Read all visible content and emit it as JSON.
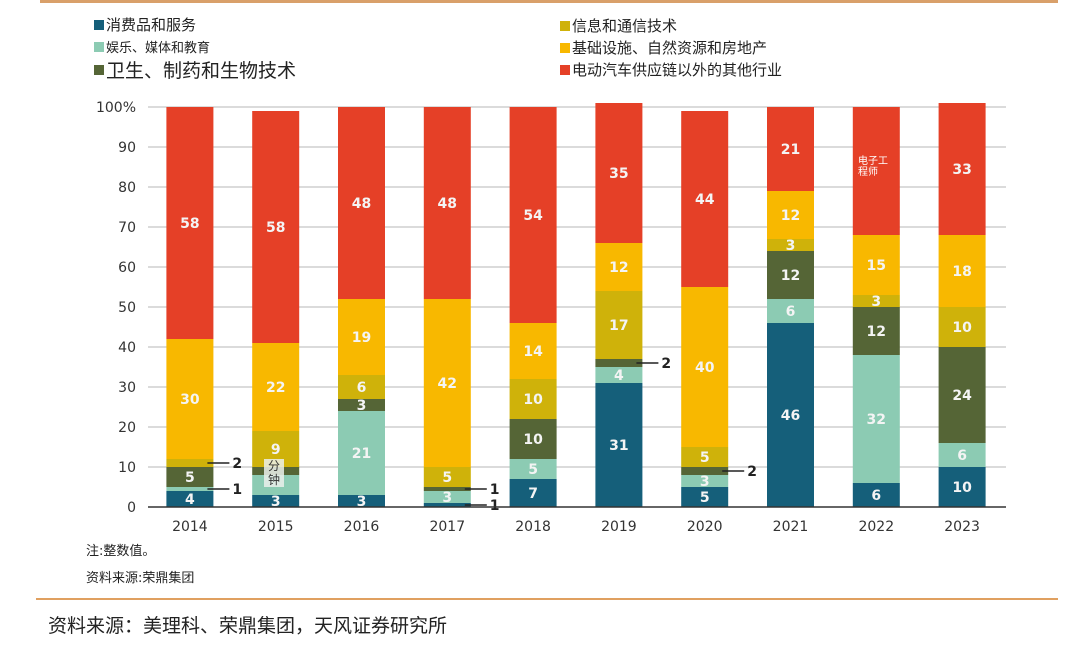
{
  "legend": [
    {
      "label": "消费品和服务",
      "color": "#155f7a"
    },
    {
      "label": "娱乐、媒体和教育",
      "color": "#8ccbb3"
    },
    {
      "label": "卫生、制药和生物技术",
      "color": "#556536"
    },
    {
      "label": "信息和通信技术",
      "color": "#cfb20a"
    },
    {
      "label": "基础设施、自然资源和房地产",
      "color": "#f8b800"
    },
    {
      "label": "电动汽车供应链以外的其他行业",
      "color": "#e54027"
    }
  ],
  "chart_data": {
    "type": "bar",
    "stacked": true,
    "title": "",
    "xlabel": "",
    "ylabel": "",
    "ylim": [
      0,
      100
    ],
    "yticks": [
      "0",
      "10",
      "20",
      "30",
      "40",
      "50",
      "60",
      "70",
      "80",
      "90",
      "100%"
    ],
    "grid": true,
    "legend_position": "top",
    "categories": [
      "2014",
      "2015",
      "2016",
      "2017",
      "2018",
      "2019",
      "2020",
      "2021",
      "2022",
      "2023"
    ],
    "series": [
      {
        "name": "消费品和服务",
        "color": "#155f7a",
        "values": [
          4,
          3,
          3,
          1,
          7,
          31,
          5,
          46,
          6,
          10
        ]
      },
      {
        "name": "娱乐、媒体和教育",
        "color": "#8ccbb3",
        "values": [
          1,
          5,
          21,
          3,
          5,
          4,
          3,
          6,
          32,
          6
        ]
      },
      {
        "name": "卫生、制药和生物技术",
        "color": "#556536",
        "values": [
          5,
          2,
          3,
          1,
          10,
          2,
          2,
          12,
          12,
          24
        ]
      },
      {
        "name": "信息和通信技术",
        "color": "#cfb20a",
        "values": [
          2,
          9,
          6,
          5,
          10,
          17,
          5,
          3,
          3,
          10
        ]
      },
      {
        "name": "基础设施、自然资源和房地产",
        "color": "#f8b800",
        "values": [
          30,
          22,
          19,
          42,
          14,
          12,
          40,
          12,
          15,
          18
        ]
      },
      {
        "name": "电动汽车供应链以外的其他行业",
        "color": "#e54027",
        "values": [
          58,
          58,
          48,
          48,
          54,
          35,
          44,
          21,
          32,
          33
        ]
      }
    ],
    "labels": [
      [
        "4",
        "",
        "5",
        "",
        "30",
        "58"
      ],
      [
        "3",
        "",
        "",
        "9",
        "22",
        "58"
      ],
      [
        "3",
        "21",
        "3",
        "6",
        "19",
        "48"
      ],
      [
        "",
        "3",
        "",
        "5",
        "42",
        "48"
      ],
      [
        "7",
        "5",
        "10",
        "10",
        "14",
        "54"
      ],
      [
        "31",
        "4",
        "",
        "17",
        "12",
        "35"
      ],
      [
        "5",
        "3",
        "",
        "5",
        "40",
        "44"
      ],
      [
        "46",
        "6",
        "12",
        "3",
        "12",
        "21"
      ],
      [
        "6",
        "32",
        "12",
        "3",
        "15",
        ""
      ],
      [
        "10",
        "6",
        "24",
        "10",
        "18",
        "33"
      ]
    ],
    "callouts": [
      {
        "category": "2014",
        "series": 3,
        "text": "2"
      },
      {
        "category": "2014",
        "series": 1,
        "text": "1"
      },
      {
        "category": "2017",
        "series": 2,
        "text": "1"
      },
      {
        "category": "2017",
        "series": 0,
        "text": "1"
      },
      {
        "category": "2019",
        "series": 2,
        "text": "2"
      },
      {
        "category": "2020",
        "series": 2,
        "text": "2"
      }
    ]
  },
  "watermarks": {
    "w2015": "分\n钟",
    "w2022": "电子工\n程师"
  },
  "notes": {
    "note": "注:整数值。",
    "inner_source": "资料来源:荣鼎集团",
    "source": "资料来源：美理科、荣鼎集团，天风证券研究所"
  }
}
